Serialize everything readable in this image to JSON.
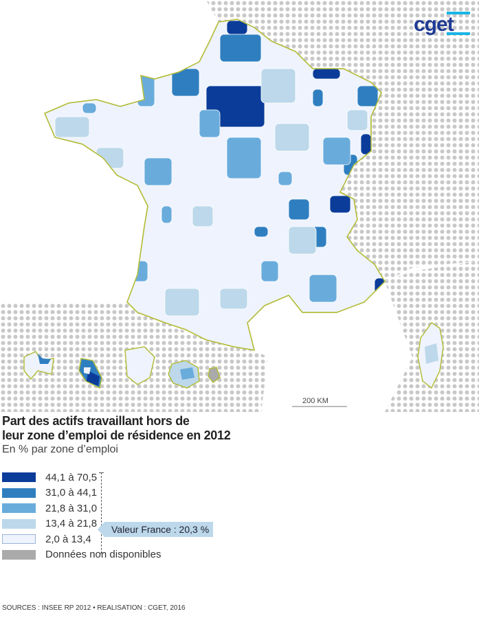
{
  "logo": {
    "text": "cget",
    "color": "#1f3a93",
    "accent": "#19b5e6"
  },
  "map": {
    "title": "Part des actifs travaillant hors de leur zone d’emploi de résidence en 2012",
    "title_line1": "Part des actifs travaillant hors de",
    "title_line2": "leur zone d’emploi de résidence en 2012",
    "subtitle": "En % par zone d’emploi",
    "scale_label": "200 KM",
    "region_border_color": "#b5bd3a"
  },
  "legend": {
    "classes": [
      {
        "label": "44,1 à 70,5",
        "color": "#0b3c9a"
      },
      {
        "label": "31,0 à 44,1",
        "color": "#2f7fc0"
      },
      {
        "label": "21,8 à 31,0",
        "color": "#69acdc"
      },
      {
        "label": "13,4 à 21,8",
        "color": "#bcd8ea"
      },
      {
        "label": "2,0 à 13,4",
        "color": "#eef3fd"
      },
      {
        "label": "Données non disponibles",
        "color": "#aaaaaa"
      }
    ],
    "france_value": "Valeur France : 20,3 %"
  },
  "sources": "SOURCES : INSEE RP 2012 • REALISATION : CGET, 2016"
}
